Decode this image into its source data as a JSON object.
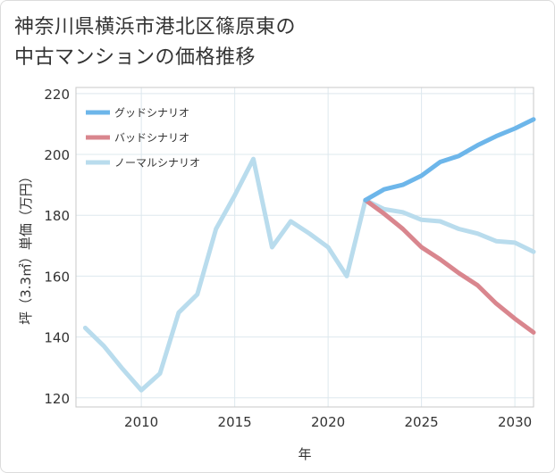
{
  "title_lines": [
    "神奈川県横浜市港北区篠原東の",
    "中古マンションの価格推移"
  ],
  "chart_data": {
    "type": "line",
    "xlabel": "年",
    "ylabel": "坪（3.3㎡）単価（万円）",
    "xlim": [
      2006.5,
      2031
    ],
    "ylim": [
      117,
      222
    ],
    "xticks": [
      2010,
      2015,
      2020,
      2025,
      2030
    ],
    "yticks": [
      120,
      140,
      160,
      180,
      200,
      220
    ],
    "grid": true,
    "legend_position": "top-left",
    "series": [
      {
        "name": "グッドシナリオ",
        "color": "#6db6ea",
        "x": [
          2022,
          2023,
          2024,
          2025,
          2026,
          2027,
          2028,
          2029,
          2030,
          2031
        ],
        "values": [
          185,
          188.5,
          190,
          193,
          197.5,
          199.5,
          203,
          206,
          208.5,
          211.5
        ]
      },
      {
        "name": "バッドシナリオ",
        "color": "#d9868e",
        "x": [
          2022,
          2023,
          2024,
          2025,
          2026,
          2027,
          2028,
          2029,
          2030,
          2031
        ],
        "values": [
          185,
          180.5,
          175.5,
          169.5,
          165.5,
          161,
          157,
          151,
          146,
          141.5
        ]
      },
      {
        "name": "ノーマルシナリオ",
        "color": "#b9dced",
        "x": [
          2007,
          2008,
          2009,
          2010,
          2011,
          2012,
          2013,
          2014,
          2015,
          2016,
          2017,
          2018,
          2019,
          2020,
          2021,
          2022,
          2023,
          2024,
          2025,
          2026,
          2027,
          2028,
          2029,
          2030,
          2031
        ],
        "values": [
          143,
          137,
          129.5,
          122.5,
          128,
          148,
          154,
          175.5,
          186.5,
          198.5,
          169.5,
          178,
          174,
          169.5,
          160,
          185,
          182,
          181,
          178.5,
          178,
          175.5,
          174,
          171.5,
          171,
          168
        ]
      }
    ]
  }
}
